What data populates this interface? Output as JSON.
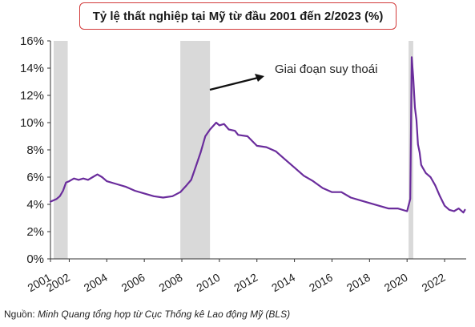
{
  "chart_data": {
    "type": "line",
    "title": "Tỷ lệ thất nghiệp tại Mỹ từ đầu 2001 đến 2/2023 (%)",
    "xlabel": "",
    "ylabel": "",
    "ylim": [
      0,
      16
    ],
    "xlim": [
      2001,
      2023.15
    ],
    "y_ticks": [
      0,
      2,
      4,
      6,
      8,
      10,
      12,
      14,
      16
    ],
    "y_tick_labels": [
      "0%",
      "2%",
      "4%",
      "6%",
      "8%",
      "10%",
      "12%",
      "14%",
      "16%"
    ],
    "x_ticks": [
      2001,
      2002,
      2004,
      2006,
      2008,
      2010,
      2012,
      2014,
      2016,
      2018,
      2020,
      2022
    ],
    "x_tick_labels": [
      "2001",
      "2002",
      "2004",
      "2006",
      "2008",
      "2010",
      "2012",
      "2014",
      "2016",
      "2018",
      "2020",
      "2022"
    ],
    "grid": false,
    "line_color": "#6a2c9c",
    "recession_color": "#d9d9d9",
    "recessions": [
      [
        2001.17,
        2001.92
      ],
      [
        2007.92,
        2009.5
      ],
      [
        2020.08,
        2020.33
      ]
    ],
    "annotation": "Giai đoạn suy thoái",
    "series": [
      {
        "x": [
          2001,
          2001.17,
          2001.33,
          2001.5,
          2001.67,
          2001.83,
          2002,
          2002.25,
          2002.5,
          2002.75,
          2003,
          2003.25,
          2003.5,
          2003.75,
          2004,
          2004.5,
          2005,
          2005.5,
          2006,
          2006.5,
          2007,
          2007.5,
          2007.92,
          2008.25,
          2008.5,
          2008.75,
          2009,
          2009.25,
          2009.5,
          2009.83,
          2010,
          2010.25,
          2010.5,
          2010.83,
          2011,
          2011.5,
          2012,
          2012.5,
          2013,
          2013.5,
          2014,
          2014.5,
          2015,
          2015.5,
          2016,
          2016.5,
          2017,
          2017.5,
          2018,
          2018.5,
          2019,
          2019.5,
          2020,
          2020.17,
          2020.25,
          2020.33,
          2020.42,
          2020.5,
          2020.58,
          2020.67,
          2020.75,
          2020.83,
          2021,
          2021.25,
          2021.5,
          2021.75,
          2022,
          2022.25,
          2022.5,
          2022.75,
          2023,
          2023.08
        ],
        "values": [
          4.2,
          4.3,
          4.4,
          4.6,
          5.0,
          5.6,
          5.7,
          5.9,
          5.8,
          5.9,
          5.8,
          6.0,
          6.2,
          6.0,
          5.7,
          5.5,
          5.3,
          5.0,
          4.8,
          4.6,
          4.5,
          4.6,
          4.9,
          5.4,
          5.8,
          6.8,
          7.8,
          9.0,
          9.5,
          10.0,
          9.8,
          9.9,
          9.5,
          9.4,
          9.1,
          9.0,
          8.3,
          8.2,
          7.9,
          7.3,
          6.7,
          6.1,
          5.7,
          5.2,
          4.9,
          4.9,
          4.5,
          4.3,
          4.1,
          3.9,
          3.7,
          3.7,
          3.5,
          4.4,
          14.8,
          13.3,
          11.1,
          10.2,
          8.4,
          7.8,
          6.9,
          6.7,
          6.3,
          6.0,
          5.4,
          4.6,
          3.9,
          3.6,
          3.5,
          3.7,
          3.4,
          3.6
        ]
      }
    ]
  },
  "source": {
    "label": "Nguồn:",
    "text": "Minh Quang tổng hợp từ Cục Thống kê Lao động Mỹ (BLS)"
  }
}
